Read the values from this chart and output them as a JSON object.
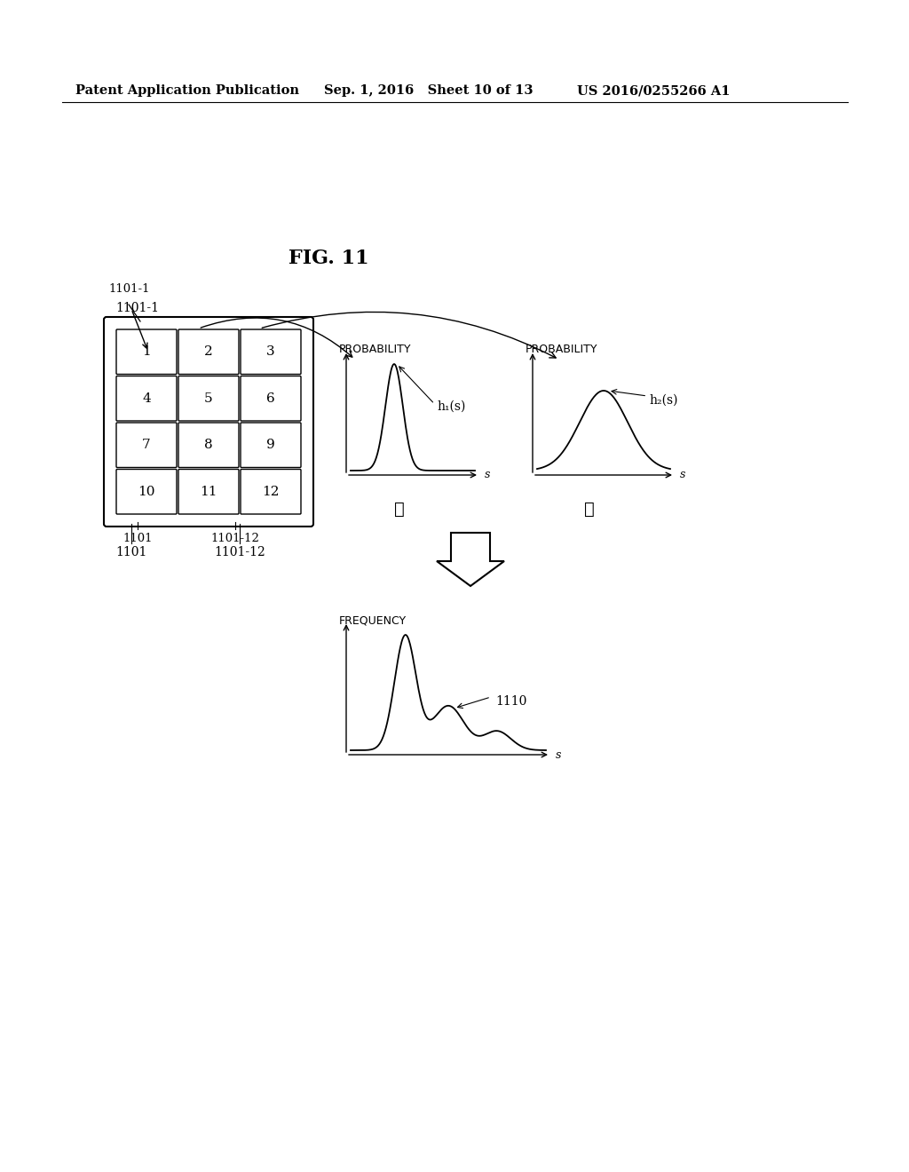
{
  "bg_color": "#ffffff",
  "header_left": "Patent Application Publication",
  "header_mid": "Sep. 1, 2016   Sheet 10 of 13",
  "header_right": "US 2016/0255266 A1",
  "fig_title": "FIG. 11",
  "grid_labels": [
    "1",
    "2",
    "3",
    "4",
    "5",
    "6",
    "7",
    "8",
    "9",
    "10",
    "11",
    "12"
  ],
  "label_1101_1": "1101-1",
  "label_1101": "1101",
  "label_1101_12": "1101-12",
  "label_h1s": "h₁(s)",
  "label_h2s": "h₂(s)",
  "label_prob1": "PROBABILITY",
  "label_prob2": "PROBABILITY",
  "label_freq": "FREQUENCY",
  "label_s1": "s",
  "label_s2": "s",
  "label_s3": "s",
  "label_1110": "1110",
  "dots": "⋮",
  "line_color": "#000000",
  "text_color": "#000000"
}
